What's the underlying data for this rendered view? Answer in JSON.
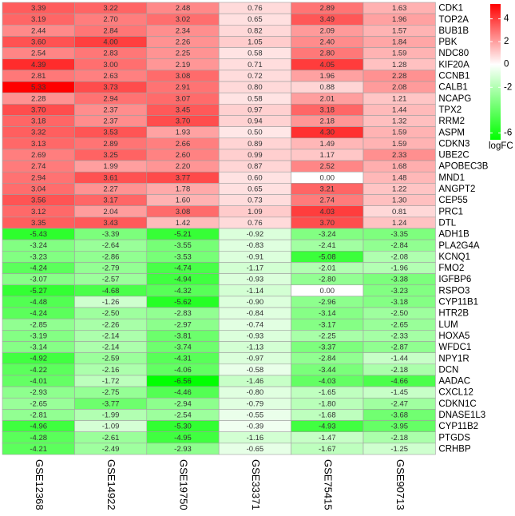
{
  "chart_data": {
    "type": "heatmap",
    "columns": [
      "GSE12368",
      "GSE14922",
      "GSE19750",
      "GSE33371",
      "GSE75415",
      "GSE90713"
    ],
    "rows": [
      "CDK1",
      "TOP2A",
      "BUB1B",
      "PBK",
      "NDC80",
      "KIF20A",
      "CCNB1",
      "CALB1",
      "NCAPG",
      "TPX2",
      "RRM2",
      "ASPM",
      "CDKN3",
      "UBE2C",
      "APOBEC3B",
      "MND1",
      "ANGPT2",
      "CEP55",
      "PRC1",
      "DTL",
      "ADH1B",
      "PLA2G4A",
      "KCNQ1",
      "FMO2",
      "IGFBP6",
      "RSPO3",
      "CYP11B1",
      "HTR2B",
      "LUM",
      "HOXA5",
      "WFDC1",
      "NPY1R",
      "DCN",
      "AADAC",
      "CXCL12",
      "CDKN1C",
      "DNASE1L3",
      "CYP11B2",
      "PTGDS",
      "CRHBP"
    ],
    "values": [
      [
        3.39,
        3.22,
        2.48,
        0.76,
        2.89,
        1.63
      ],
      [
        3.19,
        2.7,
        3.02,
        0.65,
        3.49,
        1.96
      ],
      [
        2.44,
        2.84,
        2.34,
        0.82,
        2.09,
        1.57
      ],
      [
        3.6,
        4,
        2.26,
        1.05,
        2.4,
        1.84
      ],
      [
        2.54,
        2.83,
        2.25,
        0.58,
        2.8,
        1.59
      ],
      [
        4.39,
        3,
        2.19,
        0.71,
        4.05,
        1.28
      ],
      [
        2.81,
        2.63,
        3.08,
        0.72,
        1.96,
        2.28
      ],
      [
        5.33,
        3.73,
        2.91,
        0.8,
        0.88,
        2.08
      ],
      [
        2.28,
        2.94,
        3.07,
        0.58,
        2.01,
        1.21
      ],
      [
        3.7,
        2.37,
        3.45,
        0.97,
        3.18,
        1.44
      ],
      [
        3.18,
        2.37,
        3.7,
        0.94,
        2.18,
        1.32
      ],
      [
        3.32,
        3.53,
        1.93,
        0.5,
        4.3,
        1.59
      ],
      [
        3.13,
        2.89,
        2.66,
        0.89,
        1.49,
        1.59
      ],
      [
        2.69,
        3.25,
        2.6,
        0.99,
        1.17,
        2.33
      ],
      [
        2.74,
        1.99,
        2.2,
        0.87,
        2.52,
        1.68
      ],
      [
        2.94,
        3.61,
        3.77,
        0.6,
        0,
        1.48
      ],
      [
        3.04,
        2.27,
        1.78,
        0.65,
        3.21,
        1.22
      ],
      [
        3.56,
        3.17,
        1.6,
        0.73,
        2.74,
        1.3
      ],
      [
        3.12,
        2.04,
        3.08,
        1.09,
        4.03,
        0.81
      ],
      [
        3.35,
        3.43,
        1.42,
        0.76,
        3.7,
        1.24
      ],
      [
        -5.43,
        -3.39,
        -5.21,
        -0.92,
        -3.24,
        -3.35
      ],
      [
        -3.24,
        -2.64,
        -3.55,
        -0.83,
        -2.41,
        -2.84
      ],
      [
        -3.23,
        -2.86,
        -3.53,
        -0.91,
        -5.08,
        -2.08
      ],
      [
        -4.24,
        -2.79,
        -4.74,
        -1.17,
        -2.01,
        -1.96
      ],
      [
        -3.07,
        -2.57,
        -4.94,
        -0.93,
        -2.8,
        -3.38
      ],
      [
        -5.27,
        -4.68,
        -4.32,
        -1.14,
        0,
        -3.23
      ],
      [
        -4.48,
        -1.26,
        -5.62,
        -0.9,
        -2.96,
        -3.18
      ],
      [
        -4.24,
        -2.5,
        -2.83,
        -0.84,
        -3.14,
        -2.5
      ],
      [
        -2.85,
        -2.26,
        -2.97,
        -0.74,
        -3.17,
        -2.65
      ],
      [
        -3.19,
        -2.14,
        -3.81,
        -0.93,
        -2.25,
        -2.33
      ],
      [
        -3.14,
        -2.14,
        -3.74,
        -1.13,
        -3.37,
        -2.87
      ],
      [
        -4.92,
        -2.59,
        -4.31,
        -0.97,
        -2.84,
        -1.44
      ],
      [
        -4.22,
        -2.16,
        -4.06,
        -0.58,
        -3.44,
        -2.18
      ],
      [
        -4.01,
        -1.72,
        -6.56,
        -1.46,
        -4.03,
        -4.66
      ],
      [
        -2.93,
        -2.75,
        -4.46,
        -0.8,
        -1.65,
        -1.45
      ],
      [
        -2.65,
        -3.77,
        -2.94,
        -0.79,
        -1.8,
        -2.47
      ],
      [
        -2.81,
        -1.99,
        -2.54,
        -0.55,
        -1.68,
        -3.68
      ],
      [
        -4.96,
        -1.09,
        -5.3,
        -0.39,
        -4.93,
        -3.95
      ],
      [
        -4.28,
        -2.61,
        -4.95,
        -1.16,
        -1.47,
        -2.18
      ],
      [
        -4.21,
        -2.49,
        -2.93,
        -0.65,
        -1.67,
        -1.25
      ]
    ],
    "value_labels": [
      [
        "3.39",
        "3.22",
        "2.48",
        "0.76",
        "2.89",
        "1.63"
      ],
      [
        "3.19",
        "2.70",
        "3.02",
        "0.65",
        "3.49",
        "1.96"
      ],
      [
        "2.44",
        "2.84",
        "2.34",
        "0.82",
        "2.09",
        "1.57"
      ],
      [
        "3.60",
        "4.00",
        "2.26",
        "1.05",
        "2.40",
        "1.84"
      ],
      [
        "2.54",
        "2.83",
        "2.25",
        "0.58",
        "2.80",
        "1.59"
      ],
      [
        "4.39",
        "3.00",
        "2.19",
        "0.71",
        "4.05",
        "1.28"
      ],
      [
        "2.81",
        "2.63",
        "3.08",
        "0.72",
        "1.96",
        "2.28"
      ],
      [
        "5.33",
        "3.73",
        "2.91",
        "0.80",
        "0.88",
        "2.08"
      ],
      [
        "2.28",
        "2.94",
        "3.07",
        "0.58",
        "2.01",
        "1.21"
      ],
      [
        "3.70",
        "2.37",
        "3.45",
        "0.97",
        "3.18",
        "1.44"
      ],
      [
        "3.18",
        "2.37",
        "3.70",
        "0.94",
        "2.18",
        "1.32"
      ],
      [
        "3.32",
        "3.53",
        "1.93",
        "0.50",
        "4.30",
        "1.59"
      ],
      [
        "3.13",
        "2.89",
        "2.66",
        "0.89",
        "1.49",
        "1.59"
      ],
      [
        "2.69",
        "3.25",
        "2.60",
        "0.99",
        "1.17",
        "2.33"
      ],
      [
        "2.74",
        "1.99",
        "2.20",
        "0.87",
        "2.52",
        "1.68"
      ],
      [
        "2.94",
        "3.61",
        "3.77",
        "0.60",
        "0.00",
        "1.48"
      ],
      [
        "3.04",
        "2.27",
        "1.78",
        "0.65",
        "3.21",
        "1.22"
      ],
      [
        "3.56",
        "3.17",
        "1.60",
        "0.73",
        "2.74",
        "1.30"
      ],
      [
        "3.12",
        "2.04",
        "3.08",
        "1.09",
        "4.03",
        "0.81"
      ],
      [
        "3.35",
        "3.43",
        "1.42",
        "0.76",
        "3.70",
        "1.24"
      ],
      [
        "-5.43",
        "-3.39",
        "-5.21",
        "-0.92",
        "-3.24",
        "-3.35"
      ],
      [
        "-3.24",
        "-2.64",
        "-3.55",
        "-0.83",
        "-2.41",
        "-2.84"
      ],
      [
        "-3.23",
        "-2.86",
        "-3.53",
        "-0.91",
        "-5.08",
        "-2.08"
      ],
      [
        "-4.24",
        "-2.79",
        "-4.74",
        "-1.17",
        "-2.01",
        "-1.96"
      ],
      [
        "-3.07",
        "-2.57",
        "-4.94",
        "-0.93",
        "-2.80",
        "-3.38"
      ],
      [
        "-5.27",
        "-4.68",
        "-4.32",
        "-1.14",
        "0.00",
        "-3.23"
      ],
      [
        "-4.48",
        "-1.26",
        "-5.62",
        "-0.90",
        "-2.96",
        "-3.18"
      ],
      [
        "-4.24",
        "-2.50",
        "-2.83",
        "-0.84",
        "-3.14",
        "-2.50"
      ],
      [
        "-2.85",
        "-2.26",
        "-2.97",
        "-0.74",
        "-3.17",
        "-2.65"
      ],
      [
        "-3.19",
        "-2.14",
        "-3.81",
        "-0.93",
        "-2.25",
        "-2.33"
      ],
      [
        "-3.14",
        "-2.14",
        "-3.74",
        "-1.13",
        "-3.37",
        "-2.87"
      ],
      [
        "-4.92",
        "-2.59",
        "-4.31",
        "-0.97",
        "-2.84",
        "-1.44"
      ],
      [
        "-4.22",
        "-2.16",
        "-4.06",
        "-0.58",
        "-3.44",
        "-2.18"
      ],
      [
        "-4.01",
        "-1.72",
        "-6.56",
        "-1.46",
        "-4.03",
        "-4.66"
      ],
      [
        "-2.93",
        "-2.75",
        "-4.46",
        "-0.80",
        "-1.65",
        "-1.45"
      ],
      [
        "-2.65",
        "-3.77",
        "-2.94",
        "-0.79",
        "-1.80",
        "-2.47"
      ],
      [
        "-2.81",
        "-1.99",
        "-2.54",
        "-0.55",
        "-1.68",
        "-3.68"
      ],
      [
        "-4.96",
        "-1.09",
        "-5.30",
        "-0.39",
        "-4.93",
        "-3.95"
      ],
      [
        "-4.28",
        "-2.61",
        "-4.95",
        "-1.16",
        "-1.47",
        "-2.18"
      ],
      [
        "-4.21",
        "-2.49",
        "-2.93",
        "-0.65",
        "-1.67",
        "-1.25"
      ]
    ],
    "colorbar": {
      "title": "logFC",
      "lim": [
        -6.6,
        5.3
      ],
      "ticks": [
        4,
        2,
        0,
        -2,
        -6
      ],
      "colors": {
        "low": "#00ff00",
        "mid": "#ffffff",
        "high": "#ff0000"
      }
    }
  }
}
